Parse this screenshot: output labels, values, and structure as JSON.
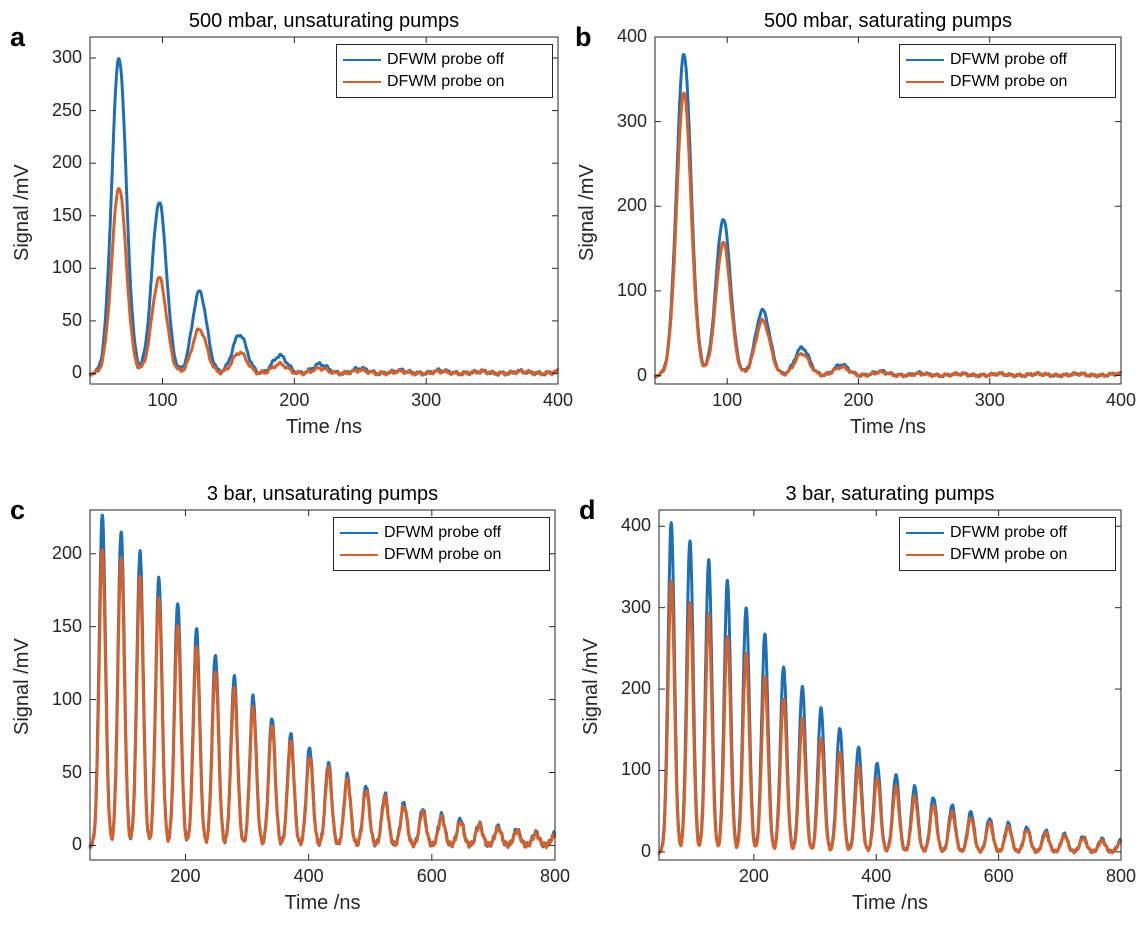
{
  "colors": {
    "probe_off": "#1f6fb4",
    "probe_on": "#d4602a",
    "axis": "#262626"
  },
  "chart_data": [
    {
      "type": "line",
      "panel_label": "a",
      "title": "500 mbar, unsaturating pumps",
      "xlabel": "Time /ns",
      "ylabel": "Signal /mV",
      "xlim": [
        45,
        400
      ],
      "ylim": [
        -10,
        320
      ],
      "xticks": [
        100,
        200,
        300,
        400
      ],
      "yticks": [
        0,
        50,
        100,
        150,
        200,
        250,
        300
      ],
      "legend_position": "top-right",
      "first_peak_time": 67,
      "peak_period": 30.5,
      "peak_width": 5.5,
      "series": [
        {
          "name": "DFWM probe off",
          "color_key": "probe_off",
          "peaks": [
            300,
            163,
            78,
            37,
            17,
            9,
            5,
            3,
            3,
            2,
            2,
            2
          ]
        },
        {
          "name": "DFWM probe on",
          "color_key": "probe_on",
          "peaks": [
            177,
            91,
            42,
            20,
            9,
            5,
            3,
            2,
            2,
            2,
            2,
            2
          ]
        }
      ]
    },
    {
      "type": "line",
      "panel_label": "b",
      "title": "500 mbar, saturating pumps",
      "xlabel": "Time /ns",
      "ylabel": "Signal /mV",
      "xlim": [
        45,
        400
      ],
      "ylim": [
        -10,
        400
      ],
      "xticks": [
        100,
        200,
        300,
        400
      ],
      "yticks": [
        0,
        100,
        200,
        300,
        400
      ],
      "legend_position": "top-right",
      "first_peak_time": 67,
      "peak_period": 30,
      "peak_width": 5.5,
      "series": [
        {
          "name": "DFWM probe off",
          "color_key": "probe_off",
          "peaks": [
            380,
            185,
            77,
            33,
            13,
            5,
            3,
            2,
            2,
            2,
            2,
            2
          ]
        },
        {
          "name": "DFWM probe on",
          "color_key": "probe_on",
          "peaks": [
            335,
            157,
            65,
            26,
            10,
            4,
            2,
            2,
            2,
            2,
            2,
            2
          ]
        }
      ]
    },
    {
      "type": "line",
      "panel_label": "c",
      "title": "3 bar, unsaturating pumps",
      "xlabel": "Time /ns",
      "ylabel": "Signal /mV",
      "xlim": [
        45,
        800
      ],
      "ylim": [
        -10,
        230
      ],
      "xticks": [
        200,
        400,
        600,
        800
      ],
      "yticks": [
        0,
        50,
        100,
        150,
        200
      ],
      "legend_position": "top-right",
      "first_peak_time": 65,
      "peak_period": 30.6,
      "peak_width": 5.2,
      "series": [
        {
          "name": "DFWM probe off",
          "color_key": "probe_off",
          "peaks": [
            226,
            216,
            201,
            183,
            167,
            148,
            131,
            116,
            102,
            88,
            76,
            67,
            57,
            48,
            41,
            35,
            29,
            25,
            21,
            18,
            15,
            13,
            11,
            9,
            8
          ]
        },
        {
          "name": "DFWM probe on",
          "color_key": "probe_on",
          "peaks": [
            203,
            198,
            183,
            170,
            151,
            136,
            120,
            107,
            95,
            83,
            71,
            61,
            53,
            45,
            38,
            33,
            27,
            23,
            19,
            16,
            14,
            12,
            10,
            8,
            7
          ]
        }
      ]
    },
    {
      "type": "line",
      "panel_label": "d",
      "title": "3 bar, saturating pumps",
      "xlabel": "Time /ns",
      "ylabel": "Signal /mV",
      "xlim": [
        45,
        800
      ],
      "ylim": [
        -10,
        420
      ],
      "xticks": [
        200,
        400,
        600,
        800
      ],
      "yticks": [
        0,
        100,
        200,
        300,
        400
      ],
      "legend_position": "top-right",
      "first_peak_time": 65,
      "peak_period": 30.6,
      "peak_width": 5.2,
      "series": [
        {
          "name": "DFWM probe off",
          "color_key": "probe_off",
          "peaks": [
            404,
            383,
            358,
            333,
            301,
            267,
            228,
            203,
            176,
            153,
            128,
            109,
            95,
            80,
            67,
            57,
            49,
            41,
            35,
            30,
            26,
            22,
            19,
            16,
            14
          ]
        },
        {
          "name": "DFWM probe on",
          "color_key": "probe_on",
          "peaks": [
            333,
            307,
            291,
            265,
            244,
            215,
            189,
            163,
            139,
            123,
            105,
            91,
            80,
            68,
            58,
            49,
            42,
            36,
            31,
            27,
            23,
            20,
            17,
            14,
            12
          ]
        }
      ]
    }
  ]
}
